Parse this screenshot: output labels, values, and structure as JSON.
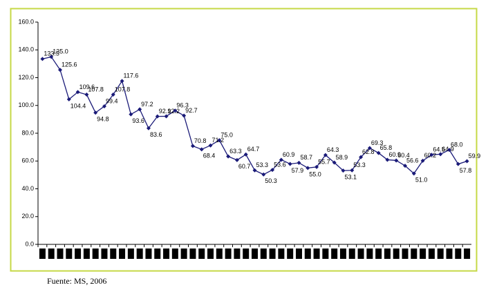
{
  "chart_data": {
    "type": "line",
    "categories": [
      null,
      null,
      null,
      null,
      null,
      null,
      null,
      null,
      null,
      null,
      null,
      null,
      null,
      null,
      null,
      null,
      null,
      null,
      null,
      null,
      null,
      null,
      null,
      null,
      null,
      null,
      null,
      null,
      null,
      null,
      null,
      null,
      null,
      null,
      null,
      null,
      null,
      null,
      null,
      null,
      null,
      null,
      null,
      null,
      null,
      null,
      null,
      null,
      null
    ],
    "values": [
      133.5,
      135.0,
      125.6,
      104.4,
      109.6,
      107.8,
      94.8,
      99.4,
      107.8,
      117.6,
      93.6,
      97.2,
      83.6,
      92.1,
      92.2,
      96.3,
      92.7,
      70.8,
      68.4,
      71.2,
      75.0,
      63.3,
      60.7,
      64.7,
      53.3,
      50.3,
      53.6,
      60.9,
      57.9,
      58.7,
      55.0,
      55.7,
      64.3,
      58.9,
      53.1,
      53.3,
      62.8,
      69.3,
      65.8,
      60.9,
      60.4,
      56.6,
      51.0,
      60.2,
      64.5,
      64.9,
      68.0,
      57.8,
      59.9
    ],
    "value_labels": [
      "133.5",
      "135.0",
      "125.6",
      "104.4",
      "109.6",
      "107.8",
      "94.8",
      "99.4",
      "107.8",
      "117.6",
      "93.6",
      "97.2",
      "83.6",
      "92.1",
      "92.2",
      "96.3",
      "92.7",
      "70.8",
      "68.4",
      "71.2",
      "75.0",
      "63.3",
      "60.7",
      "64.7",
      "53.3",
      "50.3",
      "53.6",
      "60.9",
      "57.9",
      "58.7",
      "55.0",
      "55.7",
      "64.3",
      "58.9",
      "53.1",
      "53.3",
      "62.8",
      "69.3",
      "65.8",
      "60.9",
      "60.4",
      "56.6",
      "51.0",
      "60.2",
      "64.5",
      "64.9",
      "68.0",
      "57.8",
      "59.9"
    ],
    "color": "#1a1a78",
    "ylim": [
      0,
      160
    ],
    "yticks": [
      {
        "value": 0,
        "label": "0.0"
      },
      {
        "value": 20,
        "label": "20.0"
      },
      {
        "value": 40,
        "label": "40.0"
      },
      {
        "value": 60,
        "label": "60.0"
      },
      {
        "value": 80,
        "label": "80.0"
      },
      {
        "value": 100,
        "label": "100.0"
      },
      {
        "value": 120,
        "label": "120.0"
      },
      {
        "value": 140,
        "label": "140.0"
      },
      {
        "value": 160,
        "label": "160.0"
      }
    ],
    "source": "Fuente: MS, 2006"
  }
}
